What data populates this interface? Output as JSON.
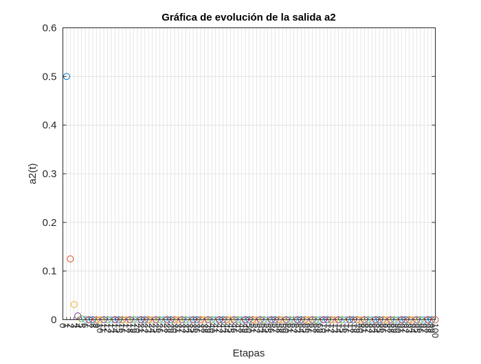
{
  "chart_data": {
    "type": "scatter",
    "title": "Gráfica de evolución de la salida a2",
    "xlabel": "Etapas",
    "ylabel": "a2(t)",
    "xlim": [
      0,
      100
    ],
    "ylim": [
      0,
      0.6
    ],
    "grid": true,
    "marker": "open-circle",
    "y_ticks": [
      "0",
      "0.1",
      "0.2",
      "0.3",
      "0.4",
      "0.5",
      "0.6"
    ],
    "color_cycle": [
      "#0072BD",
      "#D95319",
      "#EDB120",
      "#7E2F8E",
      "#77AC30",
      "#4DBEEE",
      "#A2142F"
    ],
    "x": [
      1,
      2,
      3,
      4,
      5,
      6,
      7,
      8,
      9,
      10,
      11,
      12,
      13,
      14,
      15,
      16,
      17,
      18,
      19,
      20,
      21,
      22,
      23,
      24,
      25,
      26,
      27,
      28,
      29,
      30,
      31,
      32,
      33,
      34,
      35,
      36,
      37,
      38,
      39,
      40,
      41,
      42,
      43,
      44,
      45,
      46,
      47,
      48,
      49,
      50,
      51,
      52,
      53,
      54,
      55,
      56,
      57,
      58,
      59,
      60,
      61,
      62,
      63,
      64,
      65,
      66,
      67,
      68,
      69,
      70,
      71,
      72,
      73,
      74,
      75,
      76,
      77,
      78,
      79,
      80,
      81,
      82,
      83,
      84,
      85,
      86,
      87,
      88,
      89,
      90,
      91,
      92,
      93,
      94,
      95,
      96,
      97,
      98,
      99,
      100
    ],
    "y": [
      0.5,
      0.125,
      0.03125,
      0.0078,
      0.002,
      0.0005,
      0,
      0,
      0,
      0,
      0,
      0,
      0,
      0,
      0,
      0,
      0,
      0,
      0,
      0,
      0,
      0,
      0,
      0,
      0,
      0,
      0,
      0,
      0,
      0,
      0,
      0,
      0,
      0,
      0,
      0,
      0,
      0,
      0,
      0,
      0,
      0,
      0,
      0,
      0,
      0,
      0,
      0,
      0,
      0,
      0,
      0,
      0,
      0,
      0,
      0,
      0,
      0,
      0,
      0,
      0,
      0,
      0,
      0,
      0,
      0,
      0,
      0,
      0,
      0,
      0,
      0,
      0,
      0,
      0,
      0,
      0,
      0,
      0,
      0,
      0,
      0,
      0,
      0,
      0,
      0,
      0,
      0,
      0,
      0,
      0,
      0,
      0,
      0,
      0,
      0,
      0,
      0,
      0,
      0
    ]
  }
}
